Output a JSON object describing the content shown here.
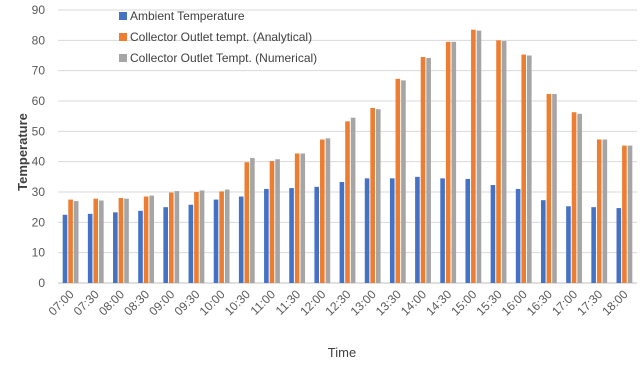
{
  "chart_data": {
    "type": "bar",
    "title": "",
    "xlabel": "Time",
    "ylabel": "Temperature",
    "ylim": [
      0,
      90
    ],
    "yticks": [
      0,
      10,
      20,
      30,
      40,
      50,
      60,
      70,
      80,
      90
    ],
    "grid": true,
    "legend_position": "top-left",
    "categories": [
      "07:00",
      "07:30",
      "08:00",
      "08:30",
      "09:00",
      "09:30",
      "10:00",
      "10:30",
      "11:00",
      "11:30",
      "12:00",
      "12:30",
      "13:00",
      "13:30",
      "14:00",
      "14:30",
      "15:00",
      "15:30",
      "16:00",
      "16:30",
      "17:00",
      "17:30",
      "18:00"
    ],
    "series": [
      {
        "name": "Ambient Temperature",
        "color": "#4472C4",
        "values": [
          22.5,
          22.8,
          23.3,
          23.8,
          25,
          25.8,
          27.5,
          28.5,
          31,
          31.3,
          31.7,
          33.3,
          34.5,
          34.5,
          35,
          34.5,
          34.3,
          32.3,
          31,
          27.3,
          25.3,
          25,
          24.7
        ]
      },
      {
        "name": "Collector Outlet tempt. (Analytical)",
        "color": "#ED7D31",
        "values": [
          27.5,
          27.8,
          28,
          28.5,
          29.8,
          30,
          30.2,
          39.8,
          40.2,
          42.7,
          47.3,
          53.3,
          57.7,
          67.3,
          74.5,
          79.5,
          83.5,
          80,
          75.3,
          62.3,
          56.3,
          47.3,
          45.3
        ]
      },
      {
        "name": "Collector Outlet Tempt. (Numerical)",
        "color": "#A5A5A5",
        "values": [
          27,
          27.2,
          27.8,
          28.8,
          30.3,
          30.5,
          30.8,
          41.2,
          40.8,
          42.7,
          47.7,
          54.5,
          57.3,
          66.8,
          74.2,
          79.5,
          83.2,
          79.8,
          75,
          62.3,
          55.8,
          47.3,
          45.3
        ]
      }
    ]
  }
}
